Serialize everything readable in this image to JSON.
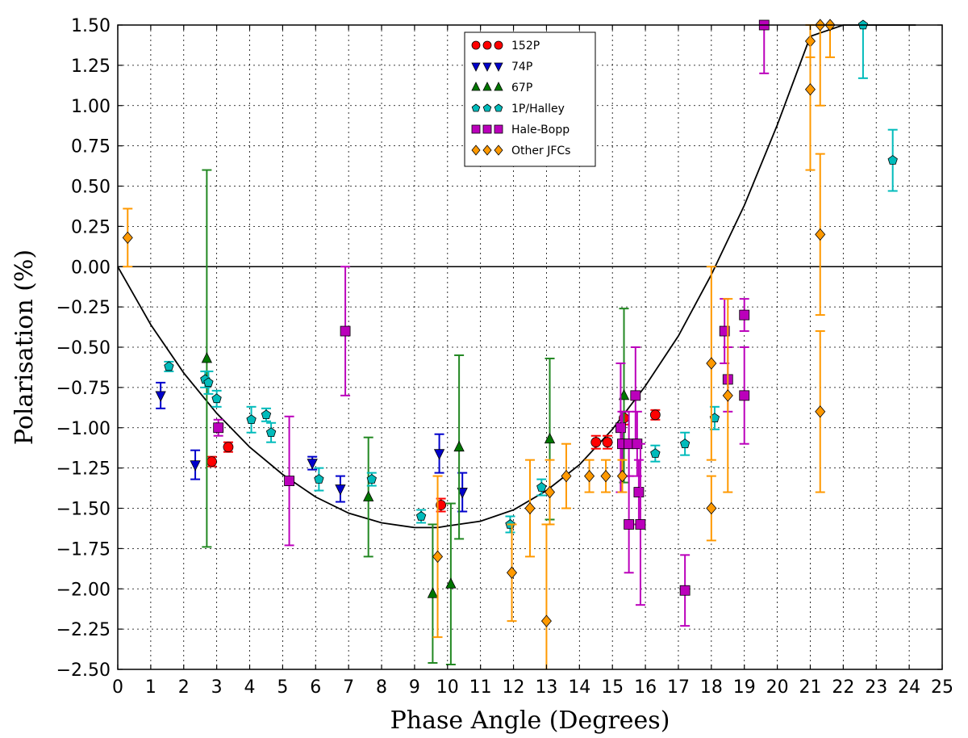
{
  "chart_data": {
    "type": "scatter",
    "title": "",
    "xlabel": "Phase Angle  (Degrees)",
    "ylabel": "Polarisation  (%)",
    "xlim": [
      0,
      25
    ],
    "ylim": [
      -2.5,
      1.5
    ],
    "xticks": [
      0,
      1,
      2,
      3,
      4,
      5,
      6,
      7,
      8,
      9,
      10,
      11,
      12,
      13,
      14,
      15,
      16,
      17,
      18,
      19,
      20,
      21,
      22,
      23,
      24,
      25
    ],
    "yticks": [
      "1.50",
      "1.25",
      "1.00",
      "0.75",
      "0.50",
      "0.25",
      "0.00",
      "−0.25",
      "−0.50",
      "−0.75",
      "−1.00",
      "−1.25",
      "−1.50",
      "−1.75",
      "−2.00",
      "−2.25",
      "−2.50"
    ],
    "grid": true,
    "legend_position": "top-center",
    "series": [
      {
        "name": "152P",
        "marker": "circle",
        "color": "#ff0000",
        "points": [
          {
            "x": 2.85,
            "y": -1.21,
            "err": 0.03
          },
          {
            "x": 3.35,
            "y": -1.12,
            "err": 0.03
          },
          {
            "x": 9.8,
            "y": -1.48,
            "err": 0.04
          },
          {
            "x": 14.5,
            "y": -1.09,
            "err": 0.04
          },
          {
            "x": 14.85,
            "y": -1.09,
            "err": 0.04
          },
          {
            "x": 15.35,
            "y": -0.94,
            "err": 0.04
          },
          {
            "x": 16.3,
            "y": -0.92,
            "err": 0.03
          }
        ]
      },
      {
        "name": "74P",
        "marker": "triangle-down",
        "color": "#0000cc",
        "points": [
          {
            "x": 1.3,
            "y": -0.8,
            "err": 0.08
          },
          {
            "x": 2.35,
            "y": -1.23,
            "err": 0.09
          },
          {
            "x": 5.9,
            "y": -1.22,
            "err": 0.04
          },
          {
            "x": 6.75,
            "y": -1.38,
            "err": 0.08
          },
          {
            "x": 9.75,
            "y": -1.16,
            "err": 0.12
          },
          {
            "x": 10.45,
            "y": -1.4,
            "err": 0.12
          }
        ]
      },
      {
        "name": "67P",
        "marker": "triangle-up",
        "color": "#007700",
        "points": [
          {
            "x": 2.7,
            "y": -0.57,
            "err": 1.17
          },
          {
            "x": 7.6,
            "y": -1.43,
            "err": 0.37
          },
          {
            "x": 9.55,
            "y": -2.03,
            "err": 0.43
          },
          {
            "x": 10.1,
            "y": -1.97,
            "err": 0.5
          },
          {
            "x": 10.35,
            "y": -1.12,
            "err": 0.57
          },
          {
            "x": 13.1,
            "y": -1.07,
            "err": 0.5
          },
          {
            "x": 15.35,
            "y": -0.8,
            "err": 0.54
          }
        ]
      },
      {
        "name": "1P/Halley",
        "marker": "pentagon",
        "color": "#00bbbb",
        "points": [
          {
            "x": 1.55,
            "y": -0.62,
            "err": 0.03
          },
          {
            "x": 2.65,
            "y": -0.7,
            "err": 0.05
          },
          {
            "x": 2.75,
            "y": -0.72,
            "err": 0.07
          },
          {
            "x": 3.0,
            "y": -0.82,
            "err": 0.05
          },
          {
            "x": 4.05,
            "y": -0.95,
            "err": 0.08
          },
          {
            "x": 4.5,
            "y": -0.92,
            "err": 0.04
          },
          {
            "x": 4.65,
            "y": -1.03,
            "err": 0.06
          },
          {
            "x": 6.1,
            "y": -1.32,
            "err": 0.07
          },
          {
            "x": 7.7,
            "y": -1.32,
            "err": 0.04
          },
          {
            "x": 9.2,
            "y": -1.55,
            "err": 0.04
          },
          {
            "x": 11.9,
            "y": -1.6,
            "err": 0.05
          },
          {
            "x": 12.85,
            "y": -1.37,
            "err": 0.05
          },
          {
            "x": 16.3,
            "y": -1.16,
            "err": 0.05
          },
          {
            "x": 17.2,
            "y": -1.1,
            "err": 0.07
          },
          {
            "x": 18.1,
            "y": -0.94,
            "err": 0.07
          },
          {
            "x": 22.6,
            "y": 1.5,
            "err": 0.33
          },
          {
            "x": 23.5,
            "y": 0.66,
            "err": 0.19
          }
        ]
      },
      {
        "name": "Hale-Bopp",
        "marker": "square",
        "color": "#bb00bb",
        "points": [
          {
            "x": 3.05,
            "y": -1.0,
            "err": 0.05
          },
          {
            "x": 5.2,
            "y": -1.33,
            "err": 0.4
          },
          {
            "x": 6.9,
            "y": -0.4,
            "err": 0.4
          },
          {
            "x": 15.25,
            "y": -1.0,
            "err": 0.4
          },
          {
            "x": 15.3,
            "y": -1.1,
            "err": 0.2
          },
          {
            "x": 15.5,
            "y": -1.6,
            "err": 0.3
          },
          {
            "x": 15.5,
            "y": -1.1,
            "err": 0.2
          },
          {
            "x": 15.7,
            "y": -0.8,
            "err": 0.3
          },
          {
            "x": 15.75,
            "y": -1.1,
            "err": 0.2
          },
          {
            "x": 15.8,
            "y": -1.4,
            "err": 0.2
          },
          {
            "x": 15.85,
            "y": -1.6,
            "err": 0.5
          },
          {
            "x": 17.2,
            "y": -2.01,
            "err": 0.22
          },
          {
            "x": 18.4,
            "y": -0.4,
            "err": 0.2
          },
          {
            "x": 18.5,
            "y": -0.7,
            "err": 0.2
          },
          {
            "x": 19.0,
            "y": -0.3,
            "err": 0.1
          },
          {
            "x": 19.0,
            "y": -0.8,
            "err": 0.3
          },
          {
            "x": 19.6,
            "y": 1.5,
            "err": 0.3
          }
        ]
      },
      {
        "name": "Other JFCs",
        "marker": "diamond",
        "color": "#ff9900",
        "points": [
          {
            "x": 0.3,
            "y": 0.18,
            "err": 0.18
          },
          {
            "x": 9.7,
            "y": -1.8,
            "err": 0.5
          },
          {
            "x": 11.95,
            "y": -1.9,
            "err": 0.3
          },
          {
            "x": 12.5,
            "y": -1.5,
            "err": 0.3
          },
          {
            "x": 13.0,
            "y": -2.2,
            "err": 0.6
          },
          {
            "x": 13.1,
            "y": -1.4,
            "err": 0.2
          },
          {
            "x": 13.6,
            "y": -1.3,
            "err": 0.2
          },
          {
            "x": 14.3,
            "y": -1.3,
            "err": 0.1
          },
          {
            "x": 14.8,
            "y": -1.3,
            "err": 0.1
          },
          {
            "x": 15.3,
            "y": -1.3,
            "err": 0.1
          },
          {
            "x": 18.0,
            "y": -0.6,
            "err": 0.6
          },
          {
            "x": 18.0,
            "y": -1.5,
            "err": 0.2
          },
          {
            "x": 18.5,
            "y": -0.8,
            "err": 0.6
          },
          {
            "x": 21.0,
            "y": 1.4,
            "err": 0.1
          },
          {
            "x": 21.0,
            "y": 1.1,
            "err": 0.5
          },
          {
            "x": 21.3,
            "y": 1.5,
            "err": 0.5
          },
          {
            "x": 21.3,
            "y": 0.2,
            "err": 0.5
          },
          {
            "x": 21.3,
            "y": -0.9,
            "err": 0.5
          },
          {
            "x": 21.6,
            "y": 1.5,
            "err": 0.2
          }
        ]
      }
    ],
    "fit_curve": {
      "color": "#000000",
      "x": [
        0,
        1,
        2,
        3,
        4,
        5,
        6,
        7,
        8,
        9,
        9.7,
        10,
        11,
        12,
        13,
        14,
        15,
        16,
        17,
        18,
        19,
        20,
        21,
        22,
        23,
        24,
        24.2
      ],
      "y": [
        0,
        -0.36,
        -0.66,
        -0.91,
        -1.12,
        -1.29,
        -1.43,
        -1.53,
        -1.59,
        -1.62,
        -1.62,
        -1.61,
        -1.58,
        -1.51,
        -1.39,
        -1.23,
        -1.01,
        -0.74,
        -0.43,
        -0.05,
        0.38,
        0.88,
        1.43,
        1.5,
        1.5,
        1.5,
        1.5
      ]
    }
  }
}
